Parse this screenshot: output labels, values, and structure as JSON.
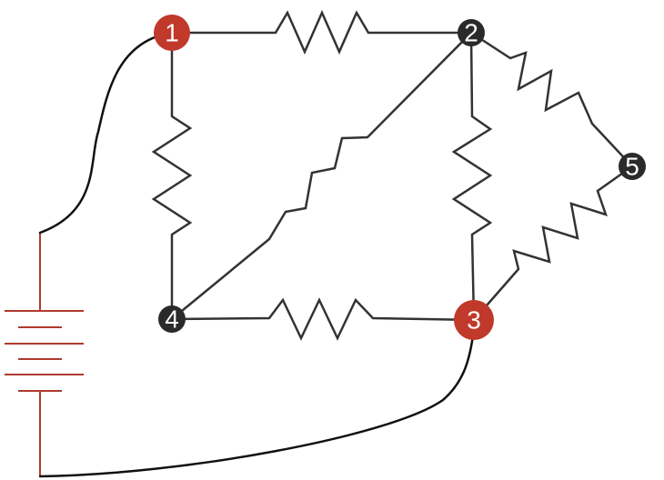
{
  "nodes": [
    {
      "id": "1",
      "label": "1",
      "role": "battery-terminal"
    },
    {
      "id": "2",
      "label": "2",
      "role": "junction"
    },
    {
      "id": "3",
      "label": "3",
      "role": "battery-terminal"
    },
    {
      "id": "4",
      "label": "4",
      "role": "junction"
    },
    {
      "id": "5",
      "label": "5",
      "role": "junction"
    }
  ],
  "resistors": [
    {
      "name": "resistor-1-2",
      "from": "1",
      "to": "2"
    },
    {
      "name": "resistor-1-4",
      "from": "1",
      "to": "4"
    },
    {
      "name": "resistor-4-2",
      "from": "4",
      "to": "2"
    },
    {
      "name": "resistor-2-3",
      "from": "2",
      "to": "3"
    },
    {
      "name": "resistor-4-3",
      "from": "4",
      "to": "3"
    },
    {
      "name": "resistor-2-5",
      "from": "2",
      "to": "5"
    },
    {
      "name": "resistor-5-3",
      "from": "5",
      "to": "3"
    }
  ],
  "battery": {
    "cells": 3,
    "connects": [
      "1",
      "3"
    ]
  },
  "colors": {
    "terminal_node": "#c0392b",
    "junction_node": "#2a2a2a",
    "battery": "#b03a2e",
    "resistor": "#333333",
    "wire": "#111111"
  }
}
